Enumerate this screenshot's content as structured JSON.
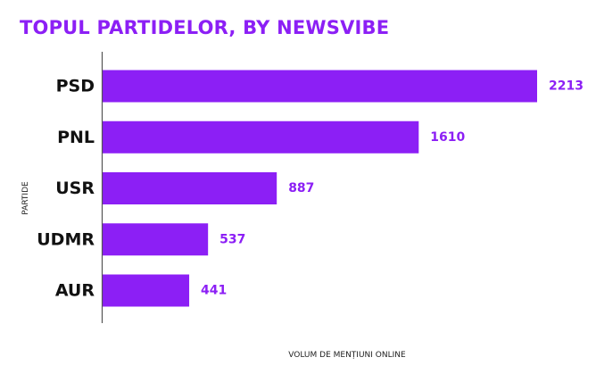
{
  "chart_data": {
    "type": "bar",
    "orientation": "horizontal",
    "title": "TOPUL PARTIDELOR, BY NEWSVIBE",
    "xlabel": "VOLUM DE MENȚIUNI ONLINE",
    "ylabel": "PARTIDE",
    "categories": [
      "PSD",
      "PNL",
      "USR",
      "UDMR",
      "AUR"
    ],
    "values": [
      2213,
      1610,
      887,
      537,
      441
    ],
    "xlim": [
      0,
      2213
    ],
    "grid": false,
    "legend": "none",
    "data_labels": true
  },
  "colors": {
    "bar": "#8c1ff5",
    "title": "#8c1ff5",
    "value_label": "#8c1ff5",
    "axis_line": "#555555"
  }
}
